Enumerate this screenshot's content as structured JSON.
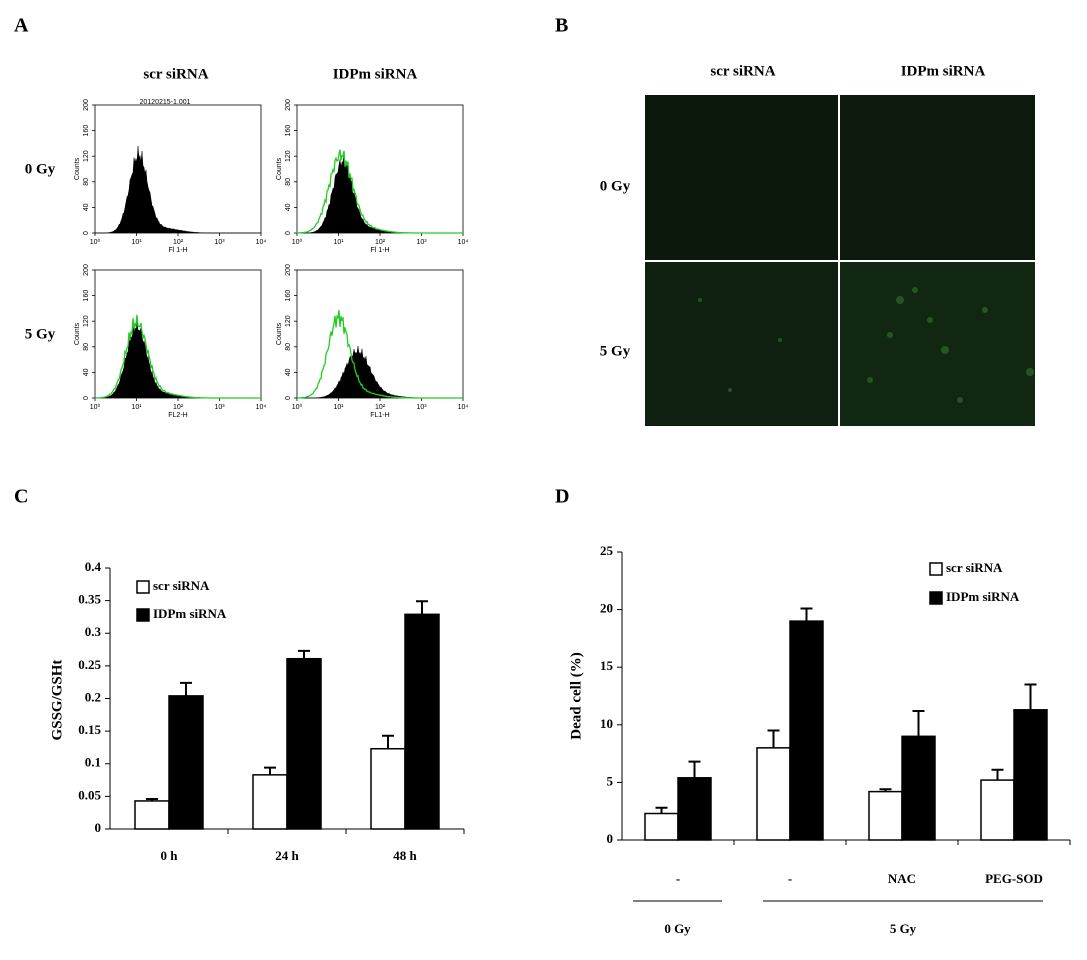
{
  "panel_labels": [
    "A",
    "B",
    "C",
    "D"
  ],
  "flow_cytometry": {
    "columns": [
      "scr siRNA",
      "IDPm siRNA"
    ],
    "rows": [
      "0 Gy",
      "5 Gy"
    ],
    "file_label": "20120215-1.001",
    "ylabel": "Counts",
    "ylim": [
      0,
      200
    ],
    "yticks": [
      0,
      40,
      80,
      120,
      160,
      200
    ],
    "log_x": true,
    "xlim": [
      1,
      10000
    ],
    "xticks": [
      {
        "value": 1,
        "label": "10⁰"
      },
      {
        "value": 10,
        "label": "10¹"
      },
      {
        "value": 100,
        "label": "10²"
      },
      {
        "value": 1000,
        "label": "10³"
      },
      {
        "value": 10000,
        "label": "10⁴"
      }
    ],
    "xlabels": [
      "Fl 1-H",
      "Fl 1-H",
      "FL2-H",
      "FL1-H"
    ]
  },
  "imaging": {
    "columns": [
      "scr siRNA",
      "IDPm siRNA"
    ],
    "rows": [
      "0 Gy",
      "5 Gy"
    ]
  },
  "chart_data": [
    {
      "type": "bar",
      "ylabel": "GSSG/GSHt",
      "categories": [
        "0 h",
        "24 h",
        "48 h"
      ],
      "series": [
        {
          "name": "scr siRNA",
          "color": "#ffffff",
          "values": [
            0.043,
            0.083,
            0.123
          ],
          "errors": [
            0.003,
            0.011,
            0.02
          ]
        },
        {
          "name": "IDPm siRNA",
          "color": "#000000",
          "values": [
            0.204,
            0.261,
            0.329
          ],
          "errors": [
            0.02,
            0.012,
            0.02
          ]
        }
      ],
      "ylim": [
        0,
        0.4
      ],
      "yticks": [
        0,
        0.05,
        0.1,
        0.15,
        0.2,
        0.25,
        0.3,
        0.35,
        0.4
      ]
    },
    {
      "type": "bar",
      "ylabel": "Dead cell (%)",
      "categories": [
        "-",
        "-",
        "NAC",
        "PEG-SOD"
      ],
      "group_labels": [
        "0 Gy",
        "5 Gy"
      ],
      "series": [
        {
          "name": "scr siRNA",
          "color": "#ffffff",
          "values": [
            2.3,
            8.0,
            4.2,
            5.2
          ],
          "errors": [
            0.5,
            1.5,
            0.2,
            0.9
          ]
        },
        {
          "name": "IDPm siRNA",
          "color": "#000000",
          "values": [
            5.4,
            19.0,
            9.0,
            11.3
          ],
          "errors": [
            1.4,
            1.1,
            2.2,
            2.2
          ]
        }
      ],
      "ylim": [
        0,
        25
      ],
      "yticks": [
        0,
        5,
        10,
        15,
        20,
        25
      ]
    }
  ]
}
